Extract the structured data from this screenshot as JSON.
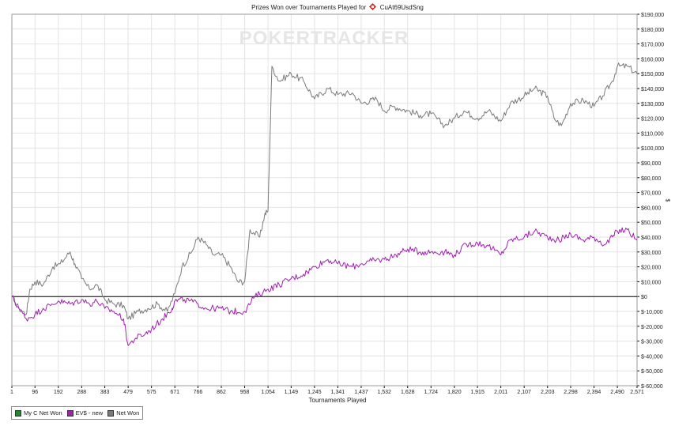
{
  "title_prefix": "Prizes Won over Tournaments Played for",
  "player": "CuAt69UsdSng",
  "watermark": "POKERTRACKER",
  "colors": {
    "grid": "#e3e3e3",
    "axis": "#000000",
    "net_won": "#7a7a7a",
    "ev": "#a020b0",
    "my_c": "#1d8a2a",
    "flag": "#e02020"
  },
  "legend": [
    {
      "label": "My C Net Won",
      "color": "#1d8a2a"
    },
    {
      "label": "EV$ - new",
      "color": "#a020b0"
    },
    {
      "label": "Net Won",
      "color": "#7a7a7a"
    }
  ],
  "chart_data": {
    "type": "line",
    "title": "Prizes Won over Tournaments Played for CuAt69UsdSng",
    "xlabel": "Tournaments Played",
    "ylabel": "$",
    "xlim": [
      1,
      2571
    ],
    "ylim": [
      -60000,
      190000
    ],
    "x_ticks": [
      "1",
      "96",
      "192",
      "288",
      "383",
      "479",
      "575",
      "671",
      "766",
      "862",
      "958",
      "1,054",
      "1,149",
      "1,245",
      "1,341",
      "1,437",
      "1,532",
      "1,628",
      "1,724",
      "1,820",
      "1,915",
      "2,011",
      "2,107",
      "2,203",
      "2,298",
      "2,394",
      "2,490",
      "2,571"
    ],
    "y_ticks": [
      "$190,000",
      "$180,000",
      "$170,000",
      "$160,000",
      "$150,000",
      "$140,000",
      "$130,000",
      "$120,000",
      "$110,000",
      "$100,000",
      "$90,000",
      "$80,000",
      "$70,000",
      "$60,000",
      "$50,000",
      "$40,000",
      "$30,000",
      "$20,000",
      "$10,000",
      "$0",
      "$-10,000",
      "$-20,000",
      "$-30,000",
      "$-40,000",
      "$-50,000",
      "$-60,000"
    ],
    "legend_position": "bottom-left",
    "grid": true,
    "series": [
      {
        "name": "Net Won",
        "color": "#7a7a7a",
        "points": [
          [
            1,
            0
          ],
          [
            30,
            -8000
          ],
          [
            60,
            -12000
          ],
          [
            75,
            5000
          ],
          [
            96,
            10000
          ],
          [
            130,
            8000
          ],
          [
            170,
            20000
          ],
          [
            200,
            22000
          ],
          [
            240,
            30000
          ],
          [
            260,
            22000
          ],
          [
            288,
            12000
          ],
          [
            320,
            5000
          ],
          [
            350,
            8000
          ],
          [
            383,
            -2000
          ],
          [
            420,
            -5000
          ],
          [
            460,
            -6000
          ],
          [
            479,
            -15000
          ],
          [
            520,
            -10000
          ],
          [
            560,
            -8000
          ],
          [
            600,
            -5000
          ],
          [
            640,
            -10000
          ],
          [
            671,
            2000
          ],
          [
            700,
            20000
          ],
          [
            740,
            30000
          ],
          [
            766,
            40000
          ],
          [
            800,
            35000
          ],
          [
            830,
            28000
          ],
          [
            862,
            28000
          ],
          [
            900,
            20000
          ],
          [
            930,
            10000
          ],
          [
            958,
            10000
          ],
          [
            980,
            45000
          ],
          [
            1020,
            40000
          ],
          [
            1040,
            55000
          ],
          [
            1054,
            58000
          ],
          [
            1070,
            155000
          ],
          [
            1100,
            145000
          ],
          [
            1149,
            150000
          ],
          [
            1200,
            145000
          ],
          [
            1245,
            133000
          ],
          [
            1300,
            140000
          ],
          [
            1341,
            136000
          ],
          [
            1400,
            137000
          ],
          [
            1437,
            130000
          ],
          [
            1500,
            133000
          ],
          [
            1532,
            125000
          ],
          [
            1570,
            128000
          ],
          [
            1628,
            125000
          ],
          [
            1680,
            122000
          ],
          [
            1724,
            123000
          ],
          [
            1780,
            115000
          ],
          [
            1820,
            120000
          ],
          [
            1860,
            125000
          ],
          [
            1915,
            120000
          ],
          [
            1960,
            125000
          ],
          [
            2011,
            118000
          ],
          [
            2050,
            130000
          ],
          [
            2107,
            135000
          ],
          [
            2150,
            140000
          ],
          [
            2203,
            135000
          ],
          [
            2230,
            120000
          ],
          [
            2260,
            115000
          ],
          [
            2298,
            130000
          ],
          [
            2350,
            132000
          ],
          [
            2394,
            128000
          ],
          [
            2430,
            135000
          ],
          [
            2470,
            145000
          ],
          [
            2490,
            155000
          ],
          [
            2530,
            155000
          ],
          [
            2571,
            150000
          ]
        ]
      },
      {
        "name": "EV$ - new",
        "color": "#a020b0",
        "points": [
          [
            1,
            0
          ],
          [
            30,
            -8000
          ],
          [
            60,
            -15000
          ],
          [
            96,
            -12000
          ],
          [
            130,
            -8000
          ],
          [
            160,
            -6000
          ],
          [
            192,
            -3000
          ],
          [
            240,
            -5000
          ],
          [
            288,
            -2000
          ],
          [
            320,
            -5000
          ],
          [
            350,
            -3000
          ],
          [
            383,
            -8000
          ],
          [
            420,
            -10000
          ],
          [
            460,
            -15000
          ],
          [
            479,
            -33000
          ],
          [
            510,
            -28000
          ],
          [
            550,
            -25000
          ],
          [
            575,
            -22000
          ],
          [
            620,
            -15000
          ],
          [
            660,
            -8000
          ],
          [
            671,
            -3000
          ],
          [
            710,
            -2000
          ],
          [
            766,
            -5000
          ],
          [
            800,
            -8000
          ],
          [
            862,
            -8000
          ],
          [
            900,
            -10000
          ],
          [
            958,
            -10000
          ],
          [
            1000,
            0
          ],
          [
            1054,
            5000
          ],
          [
            1100,
            8000
          ],
          [
            1149,
            12000
          ],
          [
            1200,
            15000
          ],
          [
            1245,
            20000
          ],
          [
            1300,
            25000
          ],
          [
            1341,
            22000
          ],
          [
            1400,
            20000
          ],
          [
            1437,
            22000
          ],
          [
            1480,
            24000
          ],
          [
            1532,
            25000
          ],
          [
            1580,
            28000
          ],
          [
            1628,
            32000
          ],
          [
            1680,
            30000
          ],
          [
            1724,
            30000
          ],
          [
            1780,
            30000
          ],
          [
            1820,
            28000
          ],
          [
            1870,
            35000
          ],
          [
            1915,
            36000
          ],
          [
            1960,
            34000
          ],
          [
            2011,
            28000
          ],
          [
            2050,
            38000
          ],
          [
            2107,
            40000
          ],
          [
            2150,
            44000
          ],
          [
            2203,
            40000
          ],
          [
            2250,
            38000
          ],
          [
            2298,
            42000
          ],
          [
            2350,
            38000
          ],
          [
            2394,
            40000
          ],
          [
            2440,
            35000
          ],
          [
            2470,
            40000
          ],
          [
            2490,
            44000
          ],
          [
            2530,
            45000
          ],
          [
            2571,
            38000
          ]
        ]
      },
      {
        "name": "My C Net Won",
        "color": "#1d8a2a",
        "points": []
      }
    ]
  }
}
